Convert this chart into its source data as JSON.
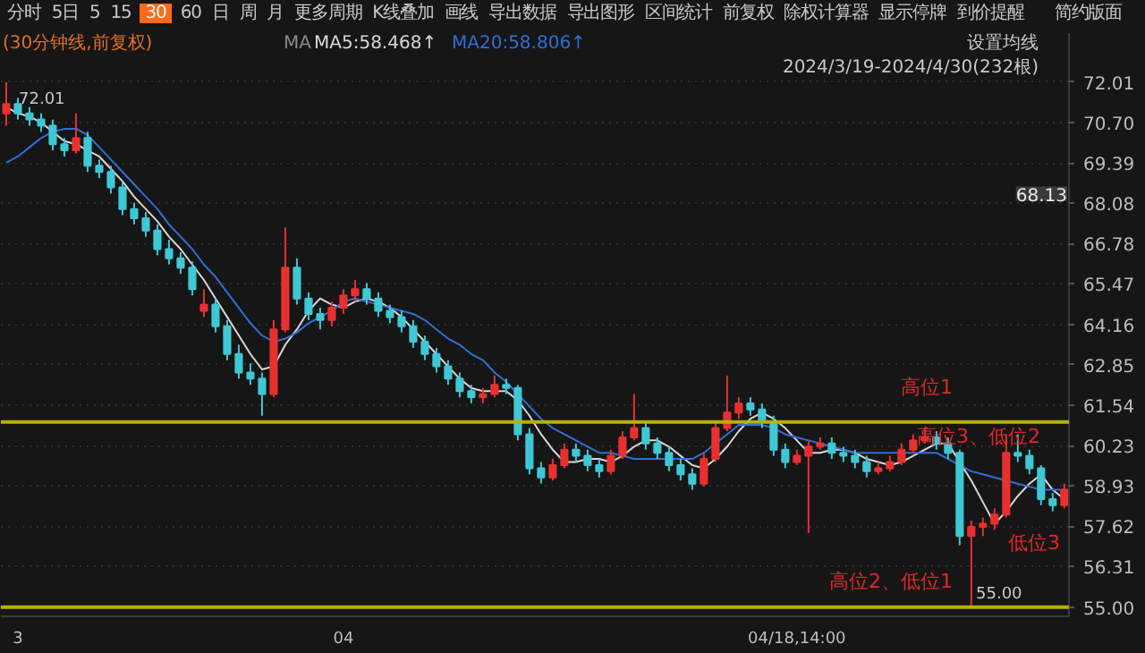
{
  "chart_data": {
    "type": "candlestick",
    "title": "(30分钟线,前复权)",
    "categories": [
      null,
      "3",
      null,
      null,
      null,
      null,
      null,
      null,
      null,
      null,
      null,
      null,
      null,
      null,
      null,
      null,
      null,
      null,
      null,
      null,
      null,
      null,
      null,
      null,
      null,
      null,
      null,
      null,
      null,
      "04",
      null,
      null,
      null,
      null,
      null,
      null,
      null,
      null,
      null,
      null,
      null,
      null,
      null,
      null,
      null,
      null,
      null,
      null,
      null,
      null,
      null,
      null,
      null,
      null,
      null,
      null,
      null,
      null,
      null,
      null,
      null,
      null,
      null,
      null,
      null,
      null,
      null,
      null,
      "04/18,14:00",
      null,
      null,
      null,
      null,
      null,
      null,
      null,
      null,
      null,
      null,
      null,
      null,
      null,
      null,
      null,
      null,
      null,
      null,
      null,
      null,
      null,
      null,
      null
    ],
    "ohlc": [
      [
        71.0,
        72.01,
        70.6,
        71.3
      ],
      [
        71.3,
        71.5,
        70.8,
        71.0
      ],
      [
        71.0,
        71.2,
        70.6,
        70.8
      ],
      [
        70.8,
        71.0,
        70.4,
        70.6
      ],
      [
        70.6,
        70.8,
        69.8,
        70.0
      ],
      [
        70.0,
        70.2,
        69.6,
        69.8
      ],
      [
        69.8,
        71.0,
        69.7,
        70.2
      ],
      [
        70.2,
        70.4,
        69.1,
        69.3
      ],
      [
        69.3,
        69.5,
        68.9,
        69.1
      ],
      [
        69.1,
        69.3,
        68.4,
        68.6
      ],
      [
        68.6,
        68.8,
        67.7,
        67.9
      ],
      [
        67.9,
        68.1,
        67.4,
        67.6
      ],
      [
        67.6,
        67.8,
        67.0,
        67.2
      ],
      [
        67.2,
        67.4,
        66.4,
        66.6
      ],
      [
        66.6,
        66.9,
        66.1,
        66.3
      ],
      [
        66.3,
        66.5,
        65.8,
        66.0
      ],
      [
        66.0,
        66.2,
        65.1,
        65.3
      ],
      [
        64.6,
        65.3,
        64.4,
        64.8
      ],
      [
        64.8,
        65.0,
        63.9,
        64.1
      ],
      [
        64.1,
        64.3,
        63.0,
        63.2
      ],
      [
        63.2,
        63.5,
        62.4,
        62.6
      ],
      [
        62.6,
        62.9,
        62.2,
        62.4
      ],
      [
        62.4,
        62.6,
        61.2,
        61.9
      ],
      [
        61.9,
        64.3,
        61.8,
        64.0
      ],
      [
        64.0,
        67.3,
        63.9,
        66.0
      ],
      [
        66.0,
        66.3,
        64.8,
        65.0
      ],
      [
        65.0,
        65.2,
        64.3,
        64.5
      ],
      [
        64.5,
        64.7,
        64.0,
        64.3
      ],
      [
        64.3,
        64.9,
        64.1,
        64.7
      ],
      [
        64.7,
        65.3,
        64.5,
        65.1
      ],
      [
        65.1,
        65.6,
        64.9,
        65.3
      ],
      [
        65.3,
        65.5,
        64.8,
        65.0
      ],
      [
        65.0,
        65.2,
        64.4,
        64.6
      ],
      [
        64.6,
        64.8,
        64.2,
        64.4
      ],
      [
        64.4,
        64.6,
        63.9,
        64.1
      ],
      [
        64.1,
        64.3,
        63.4,
        63.6
      ],
      [
        63.6,
        63.8,
        63.0,
        63.2
      ],
      [
        63.2,
        63.4,
        62.6,
        62.8
      ],
      [
        62.8,
        63.0,
        62.2,
        62.4
      ],
      [
        62.4,
        62.6,
        61.8,
        62.0
      ],
      [
        62.0,
        62.2,
        61.6,
        61.8
      ],
      [
        61.8,
        62.1,
        61.6,
        61.9
      ],
      [
        61.9,
        62.5,
        61.8,
        62.2
      ],
      [
        62.2,
        62.4,
        61.9,
        62.1
      ],
      [
        62.1,
        62.2,
        60.4,
        60.6
      ],
      [
        60.6,
        60.8,
        59.3,
        59.5
      ],
      [
        59.5,
        59.7,
        59.0,
        59.2
      ],
      [
        59.2,
        59.8,
        59.1,
        59.6
      ],
      [
        59.6,
        60.3,
        59.5,
        60.1
      ],
      [
        60.1,
        60.3,
        59.7,
        59.9
      ],
      [
        59.9,
        60.1,
        59.4,
        59.6
      ],
      [
        59.6,
        59.8,
        59.2,
        59.4
      ],
      [
        59.4,
        60.1,
        59.3,
        59.9
      ],
      [
        59.9,
        60.7,
        59.8,
        60.5
      ],
      [
        60.5,
        61.9,
        60.4,
        60.8
      ],
      [
        60.8,
        61.0,
        60.1,
        60.3
      ],
      [
        60.3,
        60.5,
        59.8,
        60.0
      ],
      [
        60.0,
        60.2,
        59.4,
        59.6
      ],
      [
        59.6,
        59.8,
        59.1,
        59.3
      ],
      [
        59.3,
        59.5,
        58.8,
        59.0
      ],
      [
        59.0,
        60.0,
        58.9,
        59.8
      ],
      [
        59.8,
        61.0,
        59.7,
        60.8
      ],
      [
        60.8,
        62.5,
        60.7,
        61.3
      ],
      [
        61.3,
        61.8,
        61.1,
        61.6
      ],
      [
        61.6,
        61.8,
        61.2,
        61.4
      ],
      [
        61.4,
        61.6,
        60.8,
        61.0
      ],
      [
        61.0,
        61.2,
        59.9,
        60.1
      ],
      [
        60.1,
        60.3,
        59.5,
        59.7
      ],
      [
        59.7,
        60.1,
        59.6,
        59.9
      ],
      [
        59.9,
        60.4,
        57.4,
        60.2
      ],
      [
        60.2,
        60.5,
        60.1,
        60.3
      ],
      [
        60.3,
        60.5,
        59.8,
        60.0
      ],
      [
        60.0,
        60.2,
        59.7,
        59.9
      ],
      [
        59.9,
        60.1,
        59.5,
        59.7
      ],
      [
        59.7,
        59.9,
        59.2,
        59.4
      ],
      [
        59.4,
        59.7,
        59.3,
        59.5
      ],
      [
        59.5,
        59.9,
        59.4,
        59.7
      ],
      [
        59.7,
        60.3,
        59.6,
        60.1
      ],
      [
        60.1,
        60.6,
        60.0,
        60.4
      ],
      [
        60.4,
        60.8,
        60.3,
        60.5
      ],
      [
        60.5,
        60.7,
        60.1,
        60.3
      ],
      [
        60.3,
        60.5,
        59.8,
        60.0
      ],
      [
        60.0,
        60.1,
        57.0,
        57.3
      ],
      [
        57.3,
        57.8,
        55.0,
        57.6
      ],
      [
        57.6,
        57.9,
        57.3,
        57.7
      ],
      [
        57.7,
        58.2,
        57.5,
        58.0
      ],
      [
        58.0,
        60.6,
        57.9,
        60.0
      ],
      [
        60.0,
        60.6,
        59.7,
        59.9
      ],
      [
        59.9,
        60.1,
        59.3,
        59.5
      ],
      [
        59.5,
        59.6,
        58.3,
        58.5
      ],
      [
        58.5,
        58.7,
        58.1,
        58.3
      ],
      [
        58.3,
        59.0,
        58.2,
        58.8
      ]
    ],
    "colors": [
      "#e8312f",
      "#3ec8d4",
      "#3ec8d4",
      "#3ec8d4",
      "#3ec8d4",
      "#3ec8d4",
      "#e8312f",
      "#3ec8d4",
      "#3ec8d4",
      "#3ec8d4",
      "#3ec8d4",
      "#3ec8d4",
      "#3ec8d4",
      "#3ec8d4",
      "#3ec8d4",
      "#3ec8d4",
      "#3ec8d4",
      "#e8312f",
      "#3ec8d4",
      "#3ec8d4",
      "#3ec8d4",
      "#3ec8d4",
      "#3ec8d4",
      "#e8312f",
      "#e8312f",
      "#3ec8d4",
      "#3ec8d4",
      "#3ec8d4",
      "#e8312f",
      "#e8312f",
      "#e8312f",
      "#3ec8d4",
      "#3ec8d4",
      "#3ec8d4",
      "#3ec8d4",
      "#3ec8d4",
      "#3ec8d4",
      "#3ec8d4",
      "#3ec8d4",
      "#3ec8d4",
      "#3ec8d4",
      "#e8312f",
      "#e8312f",
      "#3ec8d4",
      "#3ec8d4",
      "#3ec8d4",
      "#3ec8d4",
      "#e8312f",
      "#e8312f",
      "#3ec8d4",
      "#3ec8d4",
      "#3ec8d4",
      "#e8312f",
      "#e8312f",
      "#e8312f",
      "#3ec8d4",
      "#3ec8d4",
      "#3ec8d4",
      "#3ec8d4",
      "#3ec8d4",
      "#e8312f",
      "#e8312f",
      "#e8312f",
      "#e8312f",
      "#3ec8d4",
      "#3ec8d4",
      "#3ec8d4",
      "#3ec8d4",
      "#e8312f",
      "#e8312f",
      "#e8312f",
      "#3ec8d4",
      "#3ec8d4",
      "#3ec8d4",
      "#3ec8d4",
      "#e8312f",
      "#e8312f",
      "#e8312f",
      "#e8312f",
      "#e8312f",
      "#3ec8d4",
      "#3ec8d4",
      "#3ec8d4",
      "#e8312f",
      "#e8312f",
      "#e8312f",
      "#e8312f",
      "#3ec8d4",
      "#3ec8d4",
      "#3ec8d4",
      "#3ec8d4",
      "#e8312f"
    ],
    "series": [
      {
        "type": "line",
        "name": "MA5:58.468↑",
        "color": "#d8d8d8",
        "values": [
          71.2,
          71.0,
          70.9,
          70.7,
          70.4,
          70.1,
          70.0,
          69.8,
          69.6,
          69.2,
          68.8,
          68.3,
          67.9,
          67.5,
          67.0,
          66.6,
          66.1,
          65.6,
          65.0,
          64.4,
          63.8,
          63.2,
          62.7,
          62.8,
          63.5,
          64.0,
          64.6,
          65.0,
          64.8,
          64.7,
          64.9,
          65.0,
          64.9,
          64.7,
          64.4,
          64.0,
          63.6,
          63.2,
          62.8,
          62.4,
          62.1,
          62.0,
          62.0,
          62.0,
          61.7,
          61.2,
          60.6,
          60.1,
          59.7,
          59.7,
          59.8,
          59.8,
          59.7,
          59.9,
          60.2,
          60.4,
          60.4,
          60.2,
          59.9,
          59.6,
          59.5,
          59.8,
          60.2,
          60.7,
          61.1,
          61.3,
          61.1,
          60.8,
          60.4,
          60.0,
          60.0,
          60.1,
          60.1,
          60.0,
          59.8,
          59.7,
          59.6,
          59.7,
          59.9,
          60.1,
          60.3,
          60.3,
          59.7,
          59.1,
          58.4,
          57.7,
          58.1,
          58.6,
          59.0,
          59.3,
          58.8,
          58.5
        ]
      },
      {
        "type": "line",
        "name": "MA20:58.806↑",
        "color": "#2f6fd6",
        "values": [
          69.4,
          69.6,
          69.9,
          70.2,
          70.4,
          70.5,
          70.5,
          70.3,
          69.9,
          69.5,
          69.1,
          68.7,
          68.3,
          67.9,
          67.4,
          67.0,
          66.6,
          66.1,
          65.7,
          65.2,
          64.7,
          64.2,
          63.8,
          63.6,
          63.7,
          63.9,
          64.2,
          64.4,
          64.6,
          64.9,
          65.0,
          64.9,
          64.8,
          64.7,
          64.6,
          64.5,
          64.3,
          64.0,
          63.7,
          63.5,
          63.2,
          63.0,
          62.6,
          62.3,
          61.9,
          61.5,
          61.1,
          60.8,
          60.6,
          60.4,
          60.2,
          60.0,
          60.0,
          59.9,
          59.8,
          59.8,
          59.8,
          59.8,
          59.8,
          59.8,
          60.0,
          60.3,
          60.6,
          60.9,
          60.9,
          60.9,
          60.8,
          60.6,
          60.5,
          60.4,
          60.3,
          60.2,
          60.1,
          60.0,
          60.0,
          60.0,
          60.0,
          60.0,
          60.0,
          60.0,
          60.0,
          59.8,
          59.6,
          59.4,
          59.3,
          59.2,
          59.1,
          59.0,
          58.9,
          58.8,
          58.8,
          58.8
        ]
      }
    ],
    "ylim": [
      54.7,
      73.6
    ],
    "yticks": [
      72.01,
      {
        "value": 70.7,
        "label": "70.70"
      },
      69.39,
      68.08,
      66.78,
      65.47,
      64.16,
      62.85,
      61.54,
      60.23,
      58.93,
      57.62,
      56.31,
      {
        "value": 55.0,
        "label": "55.00"
      }
    ],
    "grid": "y",
    "ref_lines": [
      {
        "axis": "y",
        "value": 61.0,
        "color": "#b8b000"
      },
      {
        "axis": "y",
        "value": 55.0,
        "color": "#b8b000"
      }
    ],
    "annotations": [
      "分时",
      "5日",
      "5",
      "15",
      "30",
      "60",
      "日",
      "周",
      "月",
      "更多周期",
      "K线叠加",
      "画线",
      "导出数据",
      "导出图形",
      "区间统计",
      "前复权",
      "除权计算器",
      "显示停牌",
      "到价提醒",
      "简约版面",
      "MA",
      "设置均线",
      "2024/3/19-2024/4/30(232根)",
      "72.01",
      "55.00",
      "68.13",
      "高位1",
      "高位3、低位2",
      "高位2、低位1",
      "低位3"
    ]
  }
}
